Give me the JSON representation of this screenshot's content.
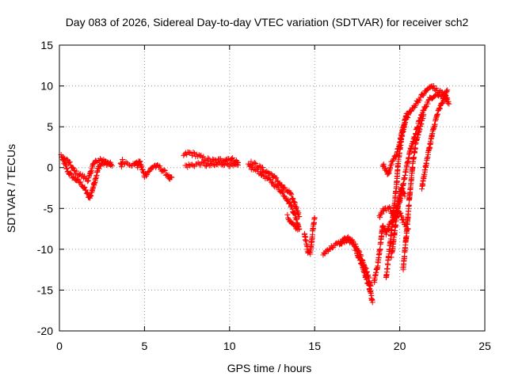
{
  "chart_data": {
    "type": "scatter",
    "title": "Day 083 of 2026, Sidereal Day-to-day VTEC variation (SDTVAR) for receiver sch2",
    "xlabel": "GPS time / hours",
    "ylabel": "SDTVAR / TECUs",
    "xlim": [
      0,
      25
    ],
    "ylim": [
      -20,
      15
    ],
    "xticks": [
      0,
      5,
      10,
      15,
      20,
      25
    ],
    "yticks": [
      -20,
      -15,
      -10,
      -5,
      0,
      5,
      10,
      15
    ],
    "grid": true,
    "marker": "+",
    "color": "#ff0000",
    "segments": [
      {
        "x": [
          0.1,
          0.3,
          0.5,
          0.7,
          1.0,
          1.3,
          1.6,
          1.75,
          1.9,
          2.1,
          2.3,
          2.5,
          2.7,
          3.0
        ],
        "y": [
          1.5,
          0.5,
          -0.5,
          -1.0,
          -1.5,
          -2.0,
          -3.0,
          -3.8,
          -3.0,
          -1.5,
          0.0,
          0.5,
          0.5,
          0.3
        ]
      },
      {
        "x": [
          0.2,
          0.5,
          0.9,
          1.3,
          1.7,
          2.0,
          2.4,
          2.8,
          3.1
        ],
        "y": [
          1.2,
          0.8,
          -0.5,
          -1.0,
          -1.5,
          0.5,
          1.0,
          0.8,
          0.2
        ]
      },
      {
        "x": [
          3.6,
          3.65,
          3.7,
          4.4,
          4.5,
          4.6,
          4.7,
          4.9,
          5.0,
          5.6,
          5.7,
          5.8,
          6.4,
          6.5,
          6.6
        ],
        "y": [
          0.5,
          0.2,
          0.8,
          0.3,
          0.7,
          0.2,
          0.8,
          -0.4,
          -1.0,
          0.3,
          0.0,
          0.2,
          -1.0,
          -1.5,
          -1.2
        ]
      },
      {
        "x": [
          7.3,
          7.6,
          8.0,
          8.4,
          8.8,
          9.2,
          9.6,
          10.0,
          10.3,
          10.5
        ],
        "y": [
          1.5,
          1.8,
          1.6,
          1.2,
          0.9,
          0.8,
          1.0,
          1.1,
          0.9,
          0.6
        ]
      },
      {
        "x": [
          7.4,
          7.8,
          8.3,
          8.7,
          9.1,
          9.5,
          9.9,
          10.2,
          10.5
        ],
        "y": [
          0.2,
          0.3,
          0.5,
          0.3,
          0.3,
          0.5,
          0.5,
          0.2,
          0.3
        ]
      },
      {
        "x": [
          11.1,
          11.4,
          11.8,
          12.2,
          12.6,
          13.0,
          13.3,
          13.6,
          13.8,
          14.0,
          14.1
        ],
        "y": [
          0.2,
          -0.2,
          -0.6,
          -1.3,
          -2.0,
          -2.8,
          -3.6,
          -4.6,
          -5.6,
          -6.8,
          -7.5
        ]
      },
      {
        "x": [
          11.2,
          11.6,
          12.0,
          12.5,
          12.9,
          13.2,
          13.5,
          13.8,
          14.1
        ],
        "y": [
          0.6,
          0.3,
          -0.3,
          -0.9,
          -1.8,
          -2.6,
          -3.0,
          -4.2,
          -6.0
        ]
      },
      {
        "x": [
          13.4,
          13.6,
          13.8,
          14.0
        ],
        "y": [
          -6.0,
          -6.7,
          -7.2,
          -7.6
        ]
      },
      {
        "x": [
          14.4,
          14.5,
          14.6,
          14.75,
          14.9,
          15.0
        ],
        "y": [
          -8.0,
          -9.2,
          -10.2,
          -10.4,
          -7.5,
          -6.2
        ]
      },
      {
        "x": [
          15.5,
          15.8,
          16.1,
          16.4,
          16.7,
          17.0,
          17.2,
          17.4,
          17.6,
          17.8,
          18.0,
          18.2,
          18.4
        ],
        "y": [
          -10.6,
          -10.0,
          -9.6,
          -9.3,
          -9.0,
          -9.0,
          -9.2,
          -10.0,
          -11.0,
          -12.0,
          -13.4,
          -14.6,
          -16.5
        ]
      },
      {
        "x": [
          16.5,
          16.8,
          17.1,
          17.4,
          17.7,
          18.0,
          18.3
        ],
        "y": [
          -9.5,
          -8.6,
          -8.8,
          -9.6,
          -10.8,
          -12.4,
          -14.5
        ]
      },
      {
        "x": [
          18.5,
          18.7,
          18.9,
          19.0,
          19.2,
          19.4,
          19.6,
          19.8,
          20.0,
          20.2,
          20.5
        ],
        "y": [
          -14.0,
          -12.0,
          -9.0,
          -7.0,
          -8.0,
          -6.8,
          -6.5,
          -6.0,
          -5.5,
          -6.5,
          -7.5
        ]
      },
      {
        "x": [
          18.8,
          19.1,
          19.4,
          19.7,
          20.0,
          20.3,
          20.6,
          20.9,
          21.2,
          21.5,
          21.8,
          22.1,
          22.4,
          22.7,
          22.9
        ],
        "y": [
          -6.0,
          -5.0,
          -5.0,
          -6.0,
          -4.0,
          -1.0,
          2.0,
          4.0,
          6.0,
          7.5,
          8.5,
          9.0,
          8.8,
          8.5,
          7.8
        ]
      },
      {
        "x": [
          19.0,
          19.3,
          19.5,
          19.8,
          20.0,
          20.2,
          20.4,
          20.7,
          21.0,
          21.3,
          21.6,
          21.9,
          22.2,
          22.5,
          22.8
        ],
        "y": [
          0.5,
          -1.0,
          0.5,
          1.5,
          3.0,
          5.0,
          6.5,
          7.0,
          8.0,
          8.8,
          9.5,
          10.0,
          9.4,
          9.2,
          8.5
        ]
      },
      {
        "x": [
          19.2,
          19.4,
          19.6,
          19.8,
          19.9,
          20.1,
          20.3,
          20.5
        ],
        "y": [
          -13.5,
          -10.0,
          -6.0,
          -2.5,
          0.5,
          3.5,
          5.5,
          6.5
        ]
      },
      {
        "x": [
          19.5,
          19.7,
          19.9,
          20.1,
          20.3
        ],
        "y": [
          -11.0,
          -8.0,
          -4.5,
          -2.5,
          -3.5
        ]
      },
      {
        "x": [
          20.2,
          20.4,
          20.6,
          20.8,
          21.0,
          21.2,
          21.4
        ],
        "y": [
          -12.5,
          -8.0,
          -3.0,
          1.0,
          3.5,
          5.0,
          6.5
        ]
      },
      {
        "x": [
          21.3,
          21.6,
          21.9,
          22.2,
          22.5,
          22.8
        ],
        "y": [
          -2.5,
          1.0,
          4.0,
          6.5,
          8.0,
          9.5
        ]
      }
    ]
  }
}
